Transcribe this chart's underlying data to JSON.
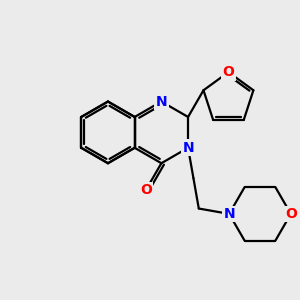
{
  "bg_color": "#ebebeb",
  "bond_color": "#000000",
  "nitrogen_color": "#0000ff",
  "oxygen_color": "#ff0000",
  "bond_width": 1.6,
  "fig_size": [
    3.0,
    3.0
  ],
  "dpi": 100,
  "xlim": [
    0,
    10
  ],
  "ylim": [
    0,
    10
  ]
}
